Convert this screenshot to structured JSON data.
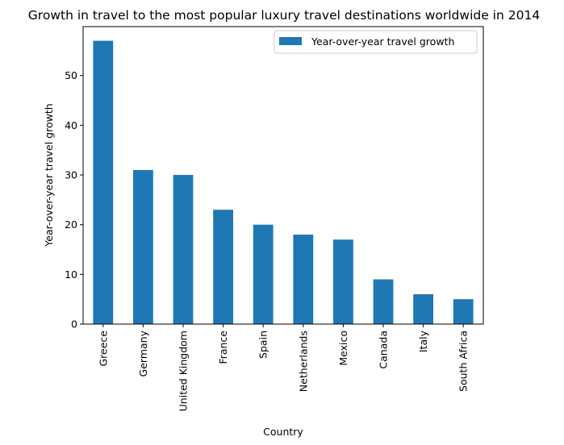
{
  "chart_data": {
    "type": "bar",
    "title": "Growth in travel to the most popular luxury travel destinations worldwide in 2014",
    "xlabel": "Country",
    "ylabel": "Year-over-year travel growth",
    "categories": [
      "Greece",
      "Germany",
      "United Kingdom",
      "France",
      "Spain",
      "Netherlands",
      "Mexico",
      "Canada",
      "Italy",
      "South Africa"
    ],
    "series": [
      {
        "name": "Year-over-year travel growth",
        "values": [
          57,
          31,
          30,
          23,
          20,
          18,
          17,
          9,
          6,
          5
        ],
        "color": "#1f77b4"
      }
    ],
    "ylim": [
      0,
      59.85
    ],
    "yticks": [
      0,
      10,
      20,
      30,
      40,
      50
    ],
    "grid": false,
    "legend_position": "top-right"
  }
}
